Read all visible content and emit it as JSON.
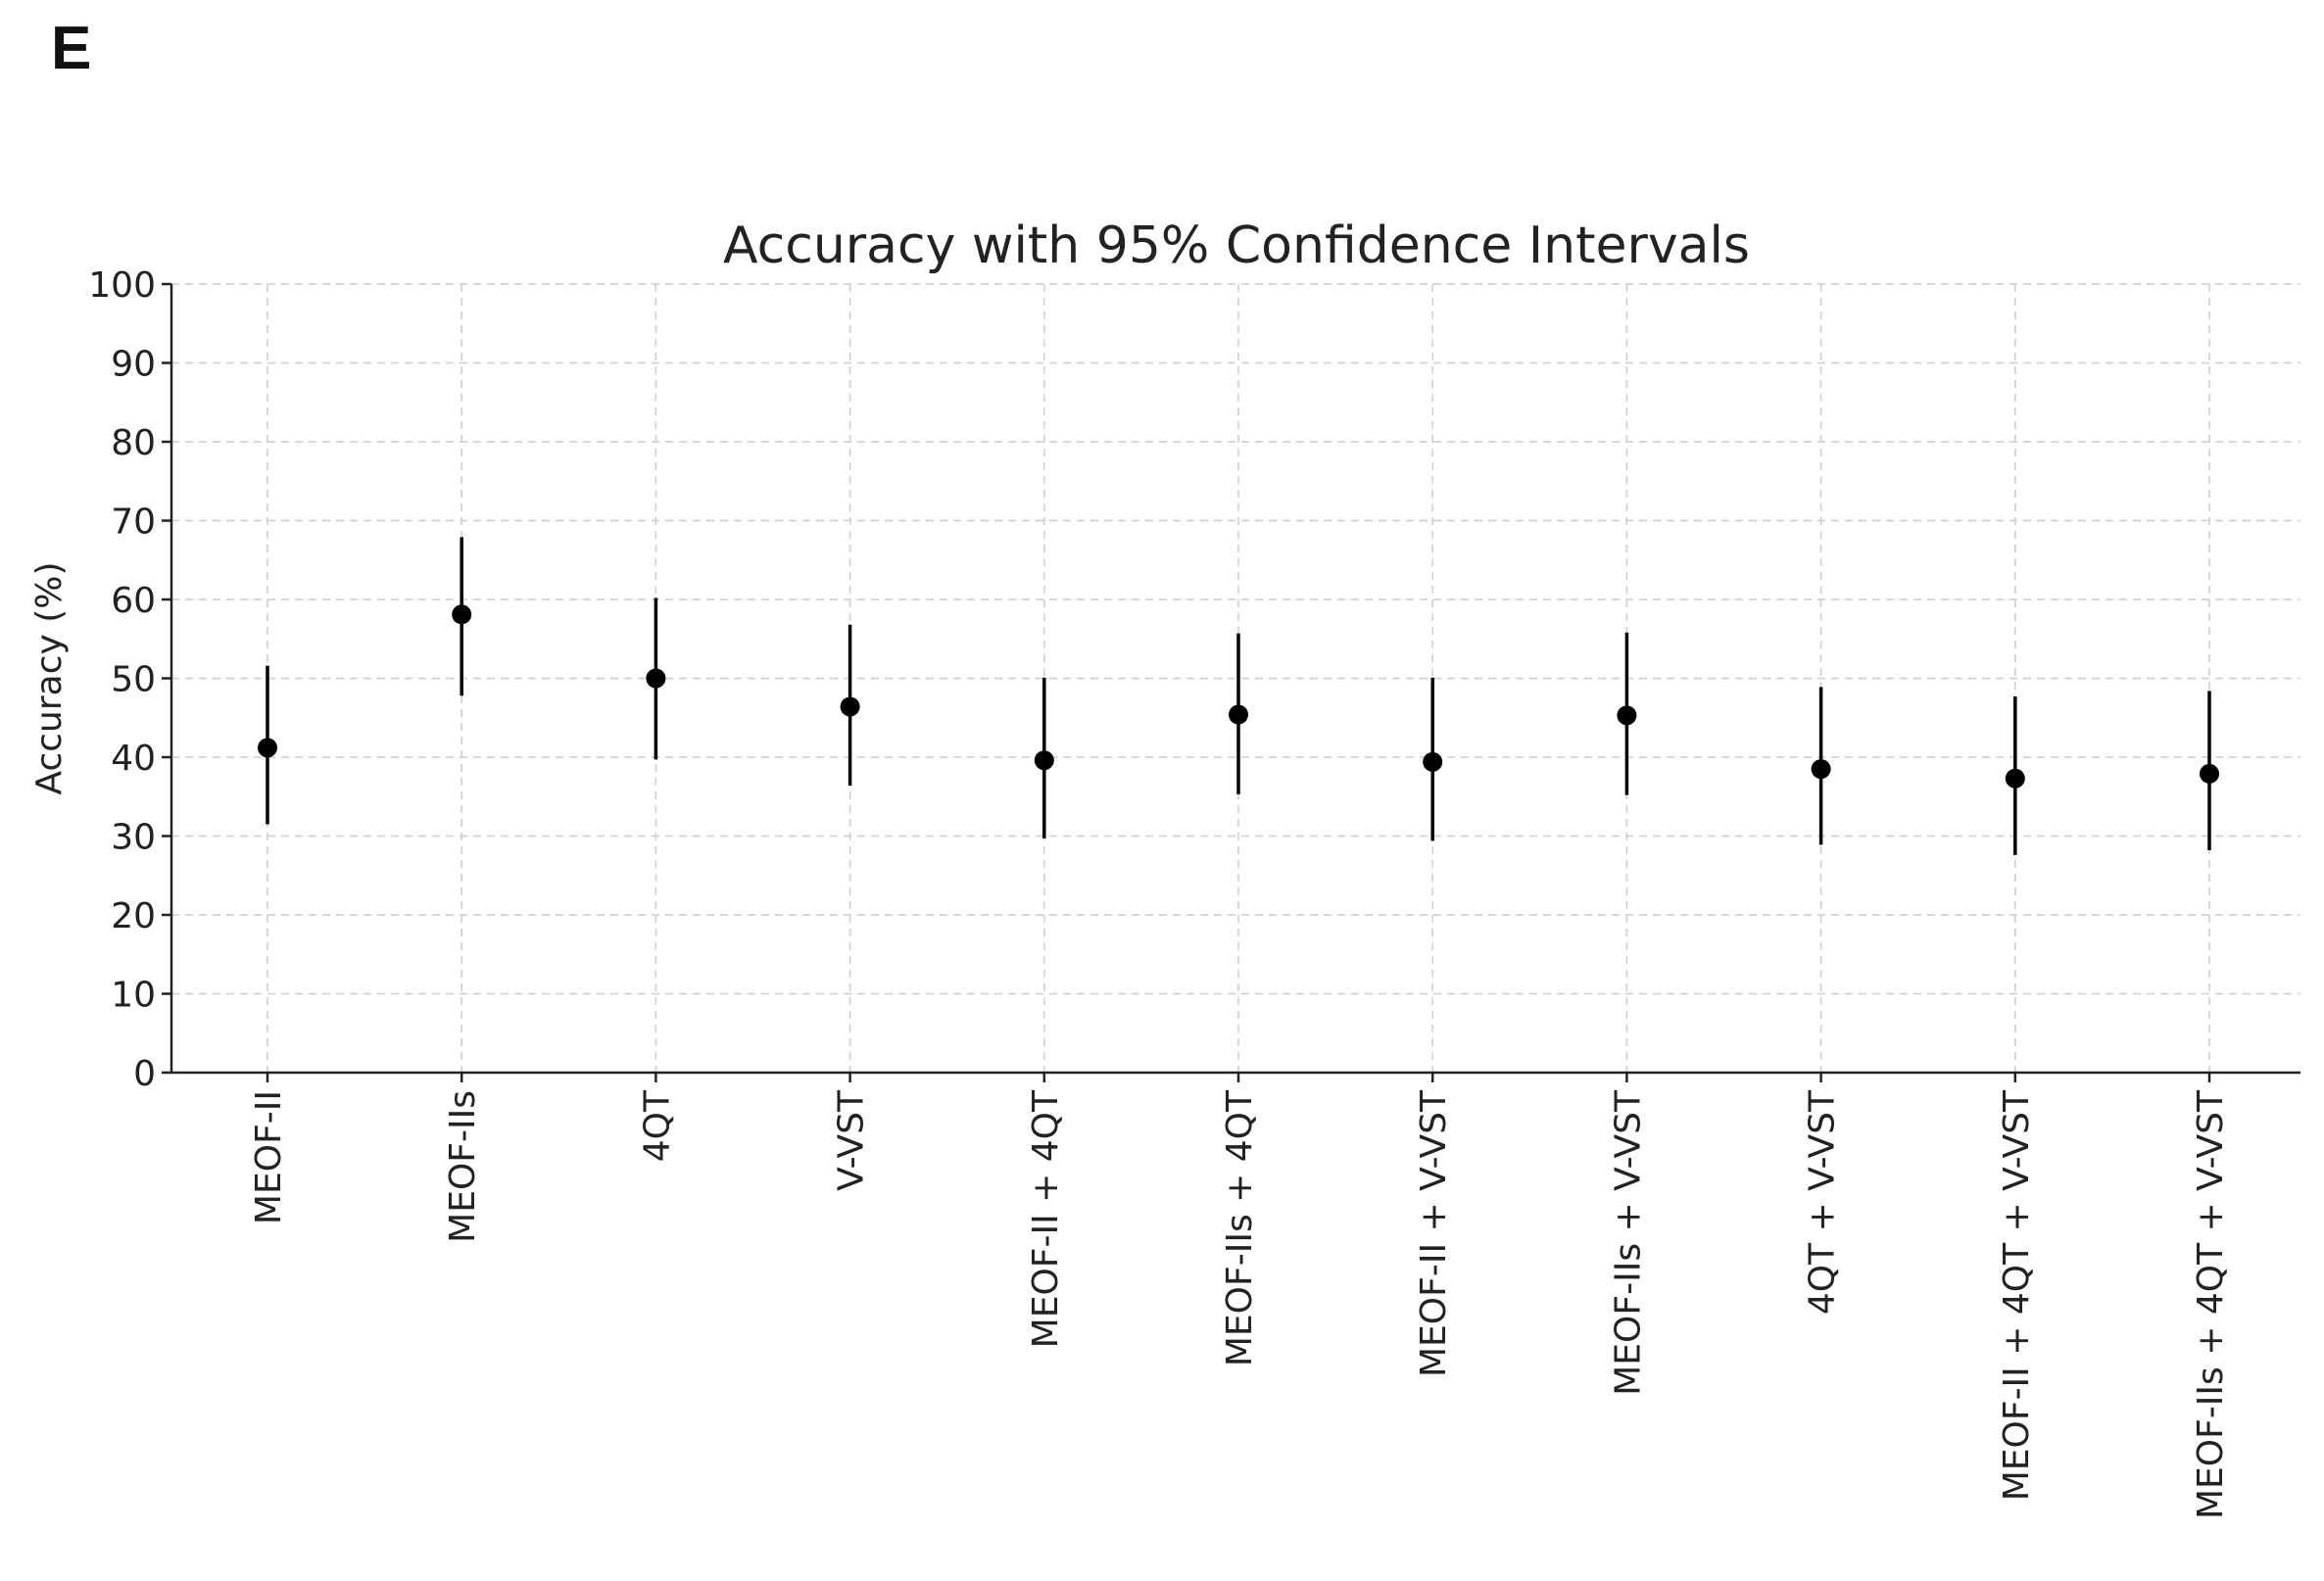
{
  "panel_label": "E",
  "chart_data": {
    "type": "scatter",
    "title": "Accuracy with 95% Confidence Intervals",
    "xlabel": "",
    "ylabel": "Accuracy (%)",
    "ylim": [
      0,
      100
    ],
    "yticks": [
      0,
      10,
      20,
      30,
      40,
      50,
      60,
      70,
      80,
      90,
      100
    ],
    "grid": true,
    "categories": [
      "MEOF-II",
      "MEOF-IIs",
      "4QT",
      "V-VST",
      "MEOF-II + 4QT",
      "MEOF-IIs + 4QT",
      "MEOF-II + V-VST",
      "MEOF-IIs + V-VST",
      "4QT + V-VST",
      "MEOF-II + 4QT + V-VST",
      "MEOF-IIs + 4QT + V-VST"
    ],
    "values": [
      41.2,
      58.1,
      50.0,
      46.4,
      39.6,
      45.4,
      39.4,
      45.3,
      38.5,
      37.3,
      37.9
    ],
    "ci_lower": [
      31.5,
      47.8,
      39.7,
      36.4,
      29.7,
      35.3,
      29.4,
      35.2,
      28.9,
      27.6,
      28.2
    ],
    "ci_upper": [
      51.6,
      67.9,
      60.2,
      56.8,
      50.1,
      55.7,
      50.1,
      55.8,
      48.9,
      47.7,
      48.4
    ],
    "colors": {
      "marker": "#000000",
      "grid": "#cccccc",
      "axis": "#222222"
    }
  }
}
